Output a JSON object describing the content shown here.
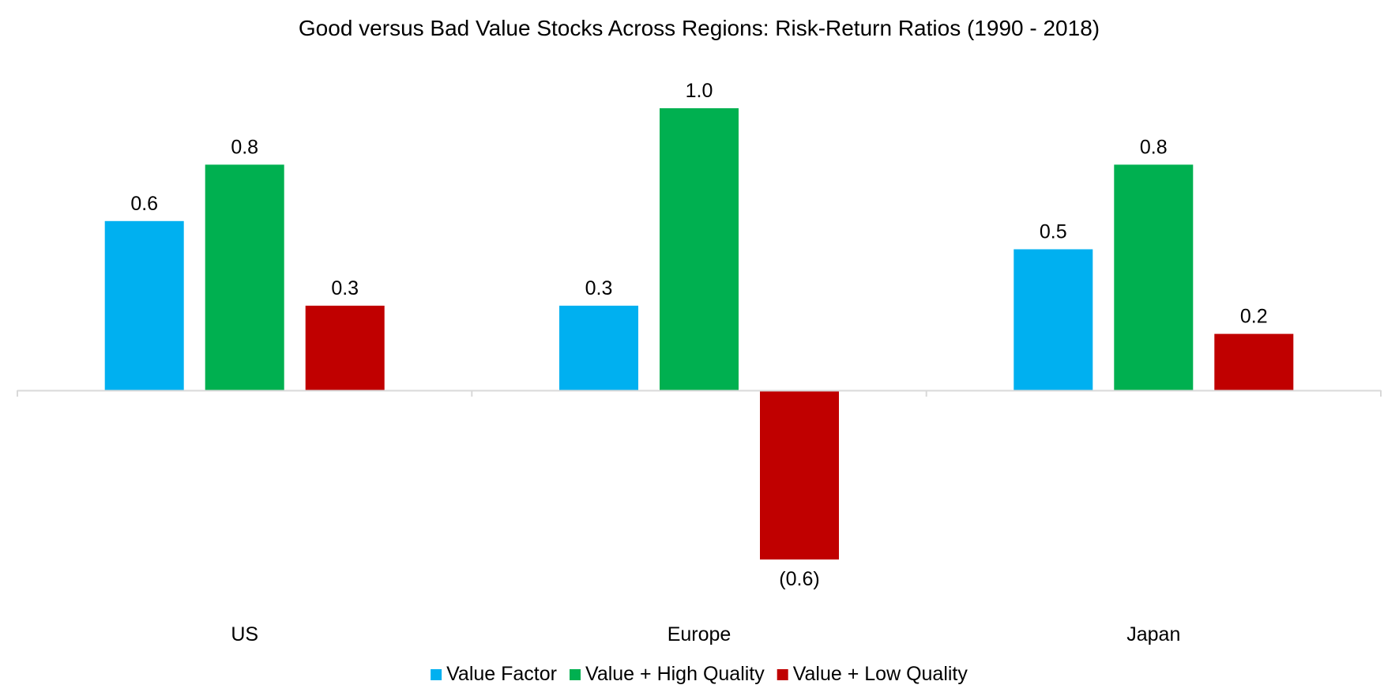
{
  "chart_data": {
    "type": "bar",
    "title": "Good versus Bad Value Stocks Across Regions: Risk-Return Ratios (1990 - 2018)",
    "xlabel": "",
    "ylabel": "",
    "categories": [
      "US",
      "Europe",
      "Japan"
    ],
    "series": [
      {
        "name": "Value Factor",
        "color": "#00B0F0",
        "values": [
          0.6,
          0.3,
          0.5
        ],
        "labels": [
          "0.6",
          "0.3",
          "0.5"
        ]
      },
      {
        "name": "Value + High Quality",
        "color": "#00B050",
        "values": [
          0.8,
          1.0,
          0.8
        ],
        "labels": [
          "0.8",
          "1.0",
          "0.8"
        ]
      },
      {
        "name": "Value + Low Quality",
        "color": "#C00000",
        "values": [
          0.3,
          -0.6,
          0.2
        ],
        "labels": [
          "0.3",
          "(0.6)",
          "0.2"
        ]
      }
    ],
    "ylim": [
      -0.6,
      1.0
    ],
    "grid": false,
    "legend_position": "bottom"
  }
}
